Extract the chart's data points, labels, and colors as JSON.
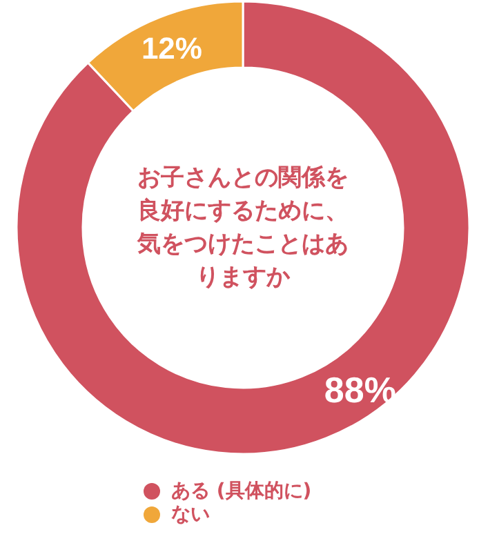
{
  "chart_data": {
    "type": "donut",
    "title": "お子さんとの関係を良好にするために、気をつけたことはありますか",
    "categories": [
      "ある (具体的に)",
      "ない"
    ],
    "values": [
      88,
      12
    ],
    "colors": [
      "#d0525f",
      "#f0a73a"
    ],
    "value_labels": [
      "88%",
      "12%"
    ],
    "legend": "bottom"
  }
}
